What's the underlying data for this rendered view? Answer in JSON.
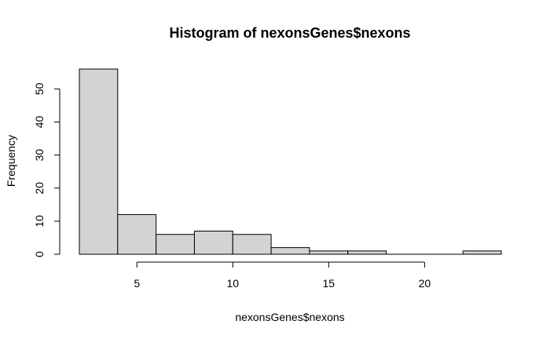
{
  "chart_data": {
    "type": "bar",
    "title": "Histogram of nexonsGenes$nexons",
    "xlabel": "nexonsGenes$nexons",
    "ylabel": "Frequency",
    "bins": [
      {
        "x0": 2,
        "x1": 4,
        "count": 56
      },
      {
        "x0": 4,
        "x1": 6,
        "count": 12
      },
      {
        "x0": 6,
        "x1": 8,
        "count": 6
      },
      {
        "x0": 8,
        "x1": 10,
        "count": 7
      },
      {
        "x0": 10,
        "x1": 12,
        "count": 6
      },
      {
        "x0": 12,
        "x1": 14,
        "count": 2
      },
      {
        "x0": 14,
        "x1": 16,
        "count": 1
      },
      {
        "x0": 16,
        "x1": 18,
        "count": 1
      },
      {
        "x0": 18,
        "x1": 20,
        "count": 0
      },
      {
        "x0": 20,
        "x1": 22,
        "count": 0
      },
      {
        "x0": 22,
        "x1": 24,
        "count": 1
      }
    ],
    "xlim": [
      2,
      24
    ],
    "ylim": [
      0,
      56
    ],
    "x_ticks": [
      5,
      10,
      15,
      20
    ],
    "x_tick_labels": [
      "5",
      "10",
      "15",
      "20"
    ],
    "y_ticks": [
      0,
      10,
      20,
      30,
      40,
      50
    ],
    "y_tick_labels": [
      "0",
      "10",
      "20",
      "30",
      "40",
      "50"
    ],
    "bar_fill": "#d3d3d3",
    "bar_stroke": "#000000",
    "grid": false,
    "legend": "none"
  }
}
